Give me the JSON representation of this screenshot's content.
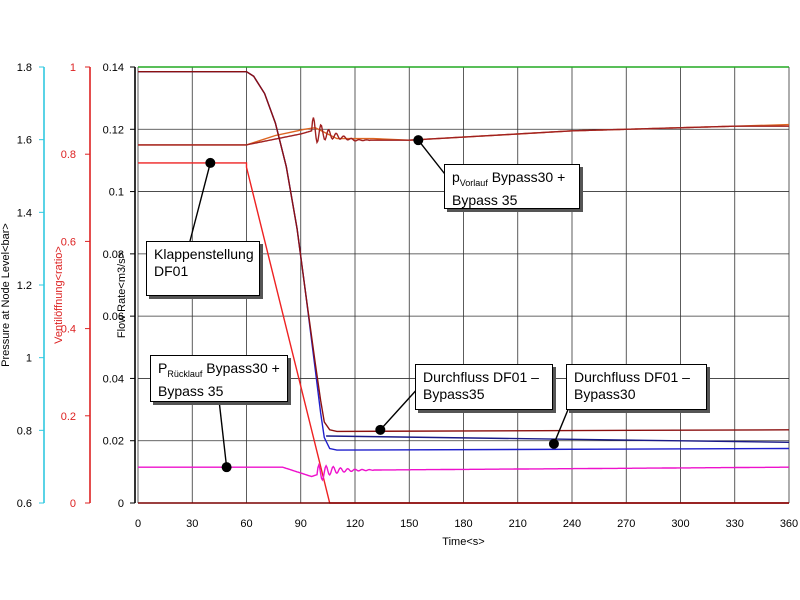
{
  "chart_data": {
    "type": "line",
    "x_axis": {
      "label": "Time<s>",
      "range": [
        0,
        360
      ],
      "ticks": [
        0,
        30,
        60,
        90,
        120,
        150,
        180,
        210,
        240,
        270,
        300,
        330,
        360
      ]
    },
    "y_axes": [
      {
        "id": "pressure",
        "label": "Pressure at Node Level<bar>",
        "color": "#30c8e0",
        "range": [
          0.6,
          1.8
        ],
        "ticks": [
          "0.6",
          "0.8",
          "1",
          "1.2",
          "1.4",
          "1.6",
          "1.8"
        ]
      },
      {
        "id": "ratio",
        "label": "Ventilöffnung<ratio>",
        "color": "#dd2222",
        "range": [
          0,
          1
        ],
        "ticks": [
          "0",
          "0.2",
          "0.4",
          "0.6",
          "0.8",
          "1"
        ]
      },
      {
        "id": "flow",
        "label": "Flow Rate<m3/s>",
        "color": "#000000",
        "range": [
          0,
          0.14
        ],
        "ticks": [
          "0",
          "0.02",
          "0.04",
          "0.06",
          "0.08",
          "0.1",
          "0.12",
          "0.14"
        ]
      }
    ],
    "grid": true,
    "series": [
      {
        "axis": "ratio",
        "color": "#ee2222",
        "kind": "points",
        "points": [
          [
            0,
            0.78
          ],
          [
            60,
            0.78
          ],
          [
            60,
            0.77
          ],
          [
            106,
            0.0
          ],
          [
            360,
            0.0
          ]
        ]
      },
      {
        "axis": "flow",
        "color": "#1f1fcc",
        "kind": "points",
        "points": [
          [
            0,
            0.1385
          ],
          [
            60,
            0.1385
          ],
          [
            64,
            0.137
          ],
          [
            70,
            0.1315
          ],
          [
            76,
            0.122
          ],
          [
            82,
            0.108
          ],
          [
            88,
            0.088
          ],
          [
            93,
            0.066
          ],
          [
            98,
            0.043
          ],
          [
            101,
            0.029
          ],
          [
            103,
            0.021
          ],
          [
            106,
            0.0175
          ],
          [
            110,
            0.017
          ],
          [
            360,
            0.0175
          ]
        ]
      },
      {
        "axis": "flow",
        "color": "#dd6622",
        "kind": "points",
        "points": [
          [
            0,
            0.115
          ],
          [
            60,
            0.115
          ],
          [
            68,
            0.1165
          ],
          [
            76,
            0.118
          ],
          [
            84,
            0.119
          ],
          [
            92,
            0.12
          ],
          [
            98,
            0.1205
          ],
          [
            110,
            0.117
          ],
          [
            130,
            0.117
          ],
          [
            150,
            0.1165
          ],
          [
            180,
            0.1175
          ],
          [
            210,
            0.1185
          ],
          [
            240,
            0.1195
          ],
          [
            270,
            0.12
          ],
          [
            300,
            0.1205
          ],
          [
            330,
            0.121
          ],
          [
            360,
            0.1215
          ]
        ]
      },
      {
        "axis": "flow",
        "color": "#a02020",
        "kind": "osc",
        "base": 0.115,
        "start": 60,
        "steps": [
          [
            90,
            0.1185
          ],
          [
            96,
            0.1195
          ],
          [
            120,
            0.1165
          ],
          [
            150,
            0.1165
          ],
          [
            180,
            0.1175
          ],
          [
            210,
            0.1185
          ],
          [
            240,
            0.1195
          ],
          [
            270,
            0.12
          ],
          [
            300,
            0.1205
          ],
          [
            330,
            0.121
          ],
          [
            360,
            0.121
          ]
        ],
        "osc": {
          "t0": 96,
          "t1": 128,
          "amp": 0.005,
          "period": 4.2,
          "decay": 8
        }
      },
      {
        "axis": "flow",
        "color": "#8b1010",
        "kind": "points",
        "points": [
          [
            0,
            0.1385
          ],
          [
            60,
            0.1385
          ],
          [
            64,
            0.137
          ],
          [
            70,
            0.1315
          ],
          [
            76,
            0.122
          ],
          [
            82,
            0.108
          ],
          [
            88,
            0.088
          ],
          [
            93,
            0.066
          ],
          [
            98,
            0.045
          ],
          [
            101,
            0.033
          ],
          [
            103,
            0.026
          ],
          [
            106,
            0.0235
          ],
          [
            110,
            0.023
          ],
          [
            360,
            0.0235
          ]
        ]
      },
      {
        "axis": "flow",
        "color": "#ee11cc",
        "kind": "osc",
        "base": 0.0115,
        "start": 60,
        "steps": [
          [
            80,
            0.0115
          ],
          [
            96,
            0.0085
          ],
          [
            106,
            0.0105
          ],
          [
            360,
            0.0115
          ]
        ],
        "osc": {
          "t0": 99,
          "t1": 130,
          "amp": 0.0032,
          "period": 4,
          "decay": 9
        }
      },
      {
        "axis": "flow",
        "color": "#1a1a88",
        "kind": "points",
        "points": [
          [
            104,
            0.0215
          ],
          [
            360,
            0.0195
          ]
        ]
      },
      {
        "axis": "flow",
        "color": "#22aa22",
        "kind": "points",
        "points": [
          [
            0,
            0.14
          ],
          [
            360,
            0.14
          ]
        ]
      },
      {
        "axis": "flow",
        "color": "#7a0000",
        "kind": "points",
        "points": [
          [
            0,
            0.0
          ],
          [
            360,
            0.0
          ]
        ]
      }
    ],
    "annotations": [
      {
        "id": "klappenstellung",
        "lines": [
          "Klappenstellung",
          "DF01"
        ],
        "marker": [
          40,
          0.78
        ],
        "marker_axis": "ratio"
      },
      {
        "id": "p-vorlauf",
        "prefix": "p",
        "subscript": "Vorlauf",
        "lines": [
          " Bypass30 +",
          "Bypass 35"
        ],
        "marker": [
          155,
          0.1165
        ],
        "marker_axis": "flow"
      },
      {
        "id": "p-ruecklauf",
        "prefix": "P",
        "subscript": "Rücklauf",
        "lines": [
          " Bypass30 +",
          "Bypass 35"
        ],
        "marker": [
          49,
          0.0115
        ],
        "marker_axis": "flow"
      },
      {
        "id": "durchfluss-35",
        "lines": [
          "Durchfluss DF01 –",
          "Bypass35"
        ],
        "marker": [
          134,
          0.0235
        ],
        "marker_axis": "flow"
      },
      {
        "id": "durchfluss-30",
        "lines": [
          "Durchfluss DF01 –",
          "Bypass30"
        ],
        "marker": [
          230,
          0.019
        ],
        "marker_axis": "flow"
      }
    ]
  }
}
